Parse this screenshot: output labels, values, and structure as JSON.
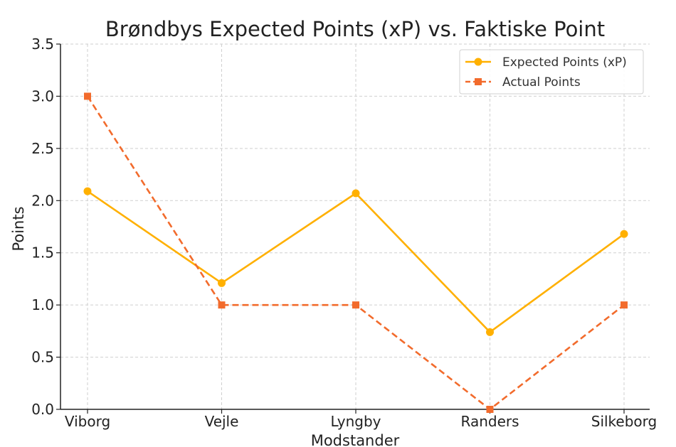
{
  "chart_data": {
    "type": "line",
    "title": "Brøndbys Expected Points (xP) vs. Faktiske Point",
    "xlabel": "Modstander",
    "ylabel": "Points",
    "categories": [
      "Viborg",
      "Vejle",
      "Lyngby",
      "Randers",
      "Silkeborg"
    ],
    "ylim": [
      0,
      3.5
    ],
    "yticks": [
      "0.0",
      "0.5",
      "1.0",
      "1.5",
      "2.0",
      "2.5",
      "3.0",
      "3.5"
    ],
    "grid": true,
    "legend_position": "top-right",
    "series": [
      {
        "name": "Expected Points (xP)",
        "values": [
          2.09,
          1.21,
          2.07,
          0.74,
          1.68
        ],
        "color": "#FFB000",
        "line_style": "solid",
        "marker": "circle"
      },
      {
        "name": "Actual Points",
        "values": [
          3,
          1,
          1,
          0,
          1
        ],
        "color": "#F26B2C",
        "line_style": "dashed",
        "marker": "square"
      }
    ]
  }
}
